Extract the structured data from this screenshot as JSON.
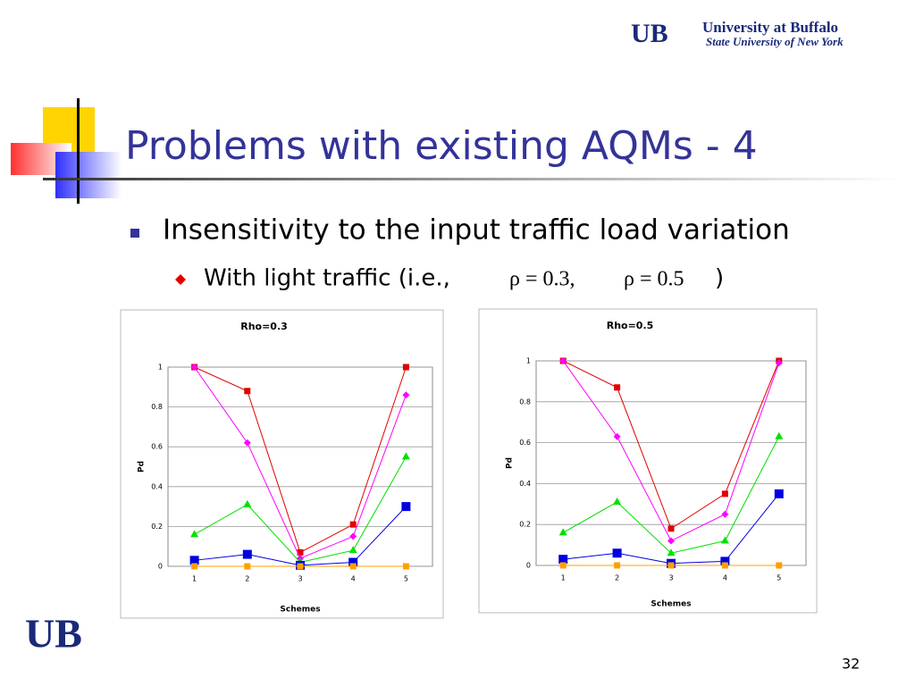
{
  "slide": {
    "logo_mark": "UB",
    "logo_title": "University at Buffalo",
    "logo_subtitle": "State University of New York",
    "title": "Problems with existing AQMs - 4",
    "bullet": "Insensitivity to the input traffic load variation",
    "sub_bullet": "With light traffic (i.e.,",
    "formula_1": "ρ = 0.3,",
    "formula_2": "ρ = 0.5",
    "sub_bullet_end": ")",
    "footer_logo": "UB",
    "page_number": "32"
  },
  "chart_data": [
    {
      "type": "line",
      "title": "Rho=0.3",
      "x_label": "Schemes",
      "y_label": "Pd",
      "categories": [
        "1",
        "2",
        "3",
        "4",
        "5"
      ],
      "ylim": [
        0,
        1
      ],
      "yticks": [
        0,
        0.2,
        0.4,
        0.6,
        0.8,
        1
      ],
      "grid": true,
      "series": [
        {
          "color": "#e00000",
          "marker": "square",
          "values": [
            1,
            0.88,
            0.07,
            0.21,
            1
          ]
        },
        {
          "color": "#ff00ff",
          "marker": "diamond",
          "values": [
            1,
            0.62,
            0.04,
            0.15,
            0.86
          ]
        },
        {
          "color": "#00e000",
          "marker": "triangle",
          "values": [
            0.16,
            0.31,
            0.02,
            0.08,
            0.55
          ]
        },
        {
          "color": "#0000e0",
          "marker": "big-square",
          "values": [
            0.03,
            0.06,
            0.005,
            0.02,
            0.3
          ]
        },
        {
          "color": "#ffa000",
          "marker": "square",
          "values": [
            0,
            0,
            0,
            0,
            0
          ]
        }
      ]
    },
    {
      "type": "line",
      "title": "Rho=0.5",
      "x_label": "Schemes",
      "y_label": "Pd",
      "categories": [
        "1",
        "2",
        "3",
        "4",
        "5"
      ],
      "ylim": [
        0,
        1
      ],
      "yticks": [
        0,
        0.2,
        0.4,
        0.6,
        0.8,
        1
      ],
      "grid": true,
      "series": [
        {
          "color": "#e00000",
          "marker": "square",
          "values": [
            1,
            0.87,
            0.18,
            0.35,
            1
          ]
        },
        {
          "color": "#ff00ff",
          "marker": "diamond",
          "values": [
            1,
            0.63,
            0.12,
            0.25,
            0.99
          ]
        },
        {
          "color": "#00e000",
          "marker": "triangle",
          "values": [
            0.16,
            0.31,
            0.06,
            0.12,
            0.63
          ]
        },
        {
          "color": "#0000e0",
          "marker": "big-square",
          "values": [
            0.03,
            0.06,
            0.01,
            0.02,
            0.35
          ]
        },
        {
          "color": "#ffa000",
          "marker": "square",
          "values": [
            0,
            0,
            0,
            0,
            0
          ]
        }
      ]
    }
  ]
}
